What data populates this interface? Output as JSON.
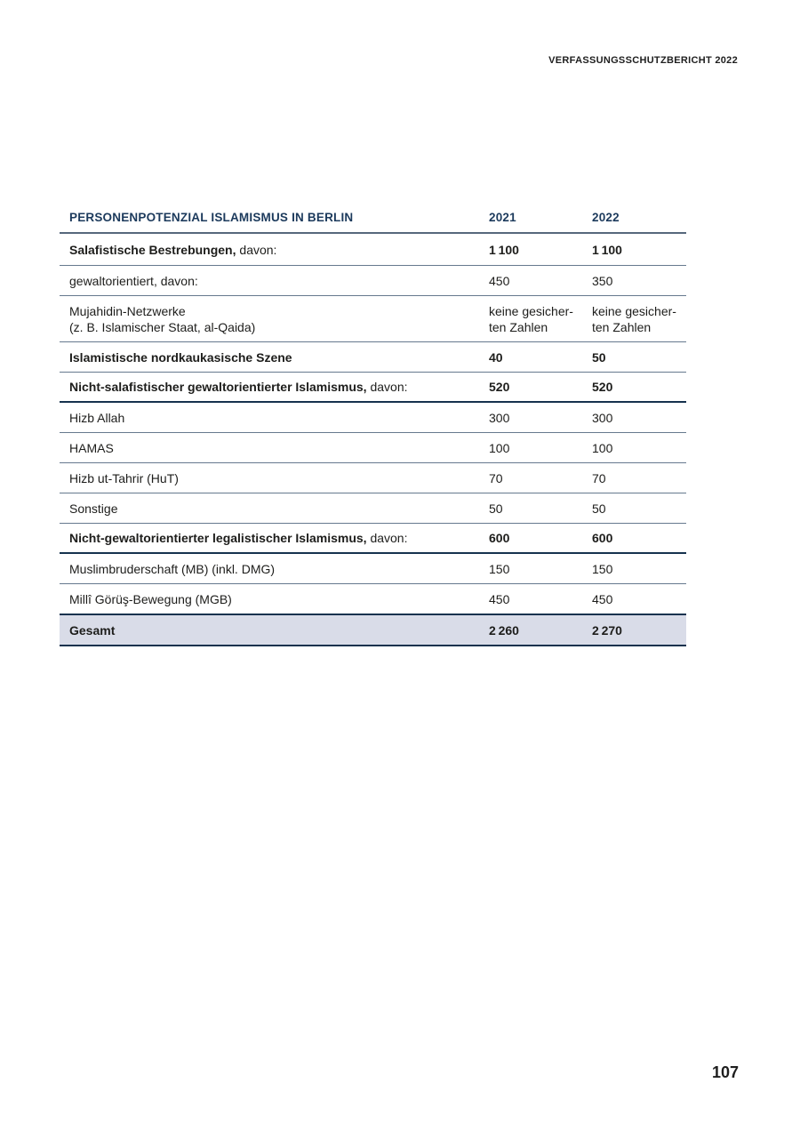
{
  "page": {
    "running_head": "VERFASSUNGSSCHUTZBERICHT 2022",
    "page_number": "107"
  },
  "table": {
    "title": "PERSONENPOTENZIAL ISLAMISMUS IN BERLIN",
    "col_2021": "2021",
    "col_2022": "2022",
    "rows": [
      {
        "label_strong": "Salafistische Bestrebungen,",
        "label_normal": " davon:",
        "v2021": "1 100",
        "v2022": "1 100"
      },
      {
        "label_strong": "",
        "label_normal": "gewaltorientiert, davon:",
        "v2021": "450",
        "v2022": "350"
      },
      {
        "label_strong": "",
        "label_normal": "Mujahidin-Netzwerke\n(z. B. Islamischer Staat, al-Qaida)",
        "v2021": "keine gesicher-\nten Zahlen",
        "v2022": "keine gesicher-\nten Zahlen"
      },
      {
        "label_strong": "Islamistische nordkaukasische Szene",
        "label_normal": "",
        "v2021": "40",
        "v2022": "50"
      },
      {
        "label_strong": "Nicht-salafistischer gewaltorientierter Islamismus,",
        "label_normal": " davon:",
        "v2021": "520",
        "v2022": "520"
      },
      {
        "label_strong": "",
        "label_normal": "Hizb Allah",
        "v2021": "300",
        "v2022": "300"
      },
      {
        "label_strong": "",
        "label_normal": "HAMAS",
        "v2021": "100",
        "v2022": "100"
      },
      {
        "label_strong": "",
        "label_normal": "Hizb ut-Tahrir (HuT)",
        "v2021": "70",
        "v2022": "70"
      },
      {
        "label_strong": "",
        "label_normal": "Sonstige",
        "v2021": "50",
        "v2022": "50"
      },
      {
        "label_strong": "Nicht-gewaltorientierter legalistischer Islamismus,",
        "label_normal": " davon:",
        "v2021": "600",
        "v2022": "600"
      },
      {
        "label_strong": "",
        "label_normal": "Muslimbruderschaft (MB) (inkl. DMG)",
        "v2021": "150",
        "v2022": "150"
      },
      {
        "label_strong": "",
        "label_normal": "Millî Görüş-Bewegung (MGB)",
        "v2021": "450",
        "v2022": "450"
      },
      {
        "label_strong": "Gesamt",
        "label_normal": "",
        "v2021": "2 260",
        "v2022": "2 270"
      }
    ],
    "colors": {
      "heading_navy": "#1c3a5c",
      "body_text": "#1d1d1b",
      "separator_line": "#66798e",
      "section_line": "#16324e",
      "total_row_bg": "#d9dce8"
    }
  }
}
